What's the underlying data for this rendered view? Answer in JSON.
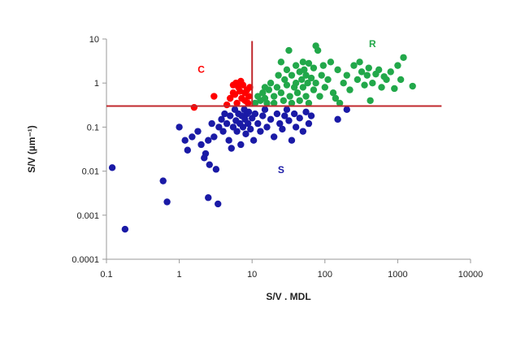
{
  "chart_data": {
    "type": "scatter",
    "xscale": "log",
    "yscale": "log",
    "xlim": [
      0.1,
      10000
    ],
    "ylim": [
      0.0001,
      10
    ],
    "x_ticks": [
      "0.1",
      "1",
      "10",
      "100",
      "1000",
      "10000"
    ],
    "y_ticks": [
      "0.0001",
      "0.001",
      "0.01",
      "0.1",
      "1",
      "10"
    ],
    "xlabel": "S/V . MDL",
    "ylabel": "S/V (µm⁻¹)",
    "grid": false,
    "threshold_lines": {
      "color": "#c0282d",
      "horizontal_y": 0.3,
      "horizontal_x_range": [
        0.1,
        4000
      ],
      "vertical_x": 10,
      "vertical_y_range": [
        0.3,
        9
      ]
    },
    "annotations": [
      {
        "text": "C",
        "x": 2,
        "y": 1.7,
        "color": "#ff0000"
      },
      {
        "text": "R",
        "x": 450,
        "y": 6.5,
        "color": "#22a84a"
      },
      {
        "text": "S",
        "x": 25,
        "y": 0.009,
        "color": "#1a1aa6"
      }
    ],
    "series": [
      {
        "color": "#ff0000",
        "points": [
          [
            1.6,
            0.28
          ],
          [
            3.0,
            0.5
          ],
          [
            4.5,
            0.32
          ],
          [
            5.0,
            0.45
          ],
          [
            5.5,
            0.6
          ],
          [
            5.5,
            0.9
          ],
          [
            6.0,
            1.0
          ],
          [
            6.5,
            0.8
          ],
          [
            7.0,
            1.1
          ],
          [
            7.5,
            0.9
          ],
          [
            8.0,
            0.6
          ],
          [
            8.0,
            0.4
          ],
          [
            8.5,
            0.7
          ],
          [
            9.0,
            0.5
          ],
          [
            6.2,
            0.35
          ],
          [
            7.2,
            0.45
          ],
          [
            8.8,
            0.35
          ],
          [
            9.3,
            0.8
          ],
          [
            5.8,
            0.55
          ],
          [
            6.8,
            0.65
          ]
        ]
      },
      {
        "color": "#22a84a",
        "points": [
          [
            11,
            0.35
          ],
          [
            12,
            0.5
          ],
          [
            13,
            0.4
          ],
          [
            14,
            0.6
          ],
          [
            15,
            0.8
          ],
          [
            15,
            0.45
          ],
          [
            16,
            0.35
          ],
          [
            17,
            0.7
          ],
          [
            18,
            1.0
          ],
          [
            20,
            0.5
          ],
          [
            20,
            0.35
          ],
          [
            22,
            0.8
          ],
          [
            23,
            1.5
          ],
          [
            25,
            0.6
          ],
          [
            25,
            3.0
          ],
          [
            27,
            0.4
          ],
          [
            28,
            1.2
          ],
          [
            30,
            0.9
          ],
          [
            30,
            2.0
          ],
          [
            32,
            5.5
          ],
          [
            33,
            0.5
          ],
          [
            35,
            1.5
          ],
          [
            35,
            0.35
          ],
          [
            38,
            0.8
          ],
          [
            40,
            2.5
          ],
          [
            40,
            1.0
          ],
          [
            42,
            0.6
          ],
          [
            45,
            1.8
          ],
          [
            45,
            0.4
          ],
          [
            48,
            1.2
          ],
          [
            50,
            3.0
          ],
          [
            50,
            0.8
          ],
          [
            52,
            2.0
          ],
          [
            55,
            1.5
          ],
          [
            55,
            0.5
          ],
          [
            58,
            1.0
          ],
          [
            60,
            2.8
          ],
          [
            60,
            0.35
          ],
          [
            65,
            1.3
          ],
          [
            70,
            0.7
          ],
          [
            70,
            2.2
          ],
          [
            75,
            7.0
          ],
          [
            75,
            1.0
          ],
          [
            80,
            5.5
          ],
          [
            85,
            0.5
          ],
          [
            90,
            1.5
          ],
          [
            95,
            2.5
          ],
          [
            100,
            0.8
          ],
          [
            110,
            1.2
          ],
          [
            120,
            3.0
          ],
          [
            130,
            0.6
          ],
          [
            140,
            0.45
          ],
          [
            150,
            2.0
          ],
          [
            160,
            0.35
          ],
          [
            180,
            1.0
          ],
          [
            200,
            1.5
          ],
          [
            220,
            0.7
          ],
          [
            250,
            2.5
          ],
          [
            280,
            1.2
          ],
          [
            300,
            3.0
          ],
          [
            320,
            1.8
          ],
          [
            350,
            0.9
          ],
          [
            380,
            1.5
          ],
          [
            400,
            2.2
          ],
          [
            420,
            0.4
          ],
          [
            450,
            1.0
          ],
          [
            500,
            1.6
          ],
          [
            550,
            2.0
          ],
          [
            600,
            0.8
          ],
          [
            650,
            1.4
          ],
          [
            700,
            1.2
          ],
          [
            800,
            1.8
          ],
          [
            900,
            0.75
          ],
          [
            1000,
            2.5
          ],
          [
            1100,
            1.2
          ],
          [
            1200,
            3.8
          ],
          [
            1600,
            0.85
          ]
        ]
      },
      {
        "color": "#1a1aa6",
        "points": [
          [
            0.12,
            0.012
          ],
          [
            0.18,
            0.00048
          ],
          [
            0.6,
            0.006
          ],
          [
            0.68,
            0.002
          ],
          [
            1.0,
            0.1
          ],
          [
            1.2,
            0.05
          ],
          [
            1.3,
            0.03
          ],
          [
            1.5,
            0.06
          ],
          [
            1.8,
            0.08
          ],
          [
            2.0,
            0.04
          ],
          [
            2.2,
            0.02
          ],
          [
            2.3,
            0.025
          ],
          [
            2.5,
            0.05
          ],
          [
            2.5,
            0.0025
          ],
          [
            2.6,
            0.014
          ],
          [
            2.8,
            0.12
          ],
          [
            3.0,
            0.06
          ],
          [
            3.2,
            0.011
          ],
          [
            3.4,
            0.0018
          ],
          [
            3.5,
            0.1
          ],
          [
            3.8,
            0.15
          ],
          [
            4.0,
            0.08
          ],
          [
            4.2,
            0.2
          ],
          [
            4.5,
            0.12
          ],
          [
            4.8,
            0.05
          ],
          [
            5.0,
            0.18
          ],
          [
            5.2,
            0.033
          ],
          [
            5.5,
            0.1
          ],
          [
            5.8,
            0.25
          ],
          [
            6.0,
            0.14
          ],
          [
            6.2,
            0.08
          ],
          [
            6.5,
            0.2
          ],
          [
            6.8,
            0.12
          ],
          [
            7.0,
            0.04
          ],
          [
            7.2,
            0.18
          ],
          [
            7.5,
            0.1
          ],
          [
            7.8,
            0.25
          ],
          [
            8.0,
            0.15
          ],
          [
            8.2,
            0.07
          ],
          [
            8.5,
            0.2
          ],
          [
            8.8,
            0.12
          ],
          [
            9.0,
            0.22
          ],
          [
            9.5,
            0.09
          ],
          [
            10,
            0.16
          ],
          [
            10.5,
            0.05
          ],
          [
            11,
            0.2
          ],
          [
            12,
            0.12
          ],
          [
            13,
            0.08
          ],
          [
            14,
            0.18
          ],
          [
            15,
            0.25
          ],
          [
            16,
            0.1
          ],
          [
            18,
            0.15
          ],
          [
            20,
            0.06
          ],
          [
            22,
            0.2
          ],
          [
            24,
            0.12
          ],
          [
            26,
            0.09
          ],
          [
            28,
            0.18
          ],
          [
            30,
            0.25
          ],
          [
            32,
            0.14
          ],
          [
            35,
            0.05
          ],
          [
            38,
            0.2
          ],
          [
            40,
            0.1
          ],
          [
            45,
            0.16
          ],
          [
            50,
            0.08
          ],
          [
            55,
            0.22
          ],
          [
            60,
            0.12
          ],
          [
            65,
            0.18
          ],
          [
            150,
            0.15
          ],
          [
            200,
            0.25
          ]
        ]
      }
    ]
  }
}
